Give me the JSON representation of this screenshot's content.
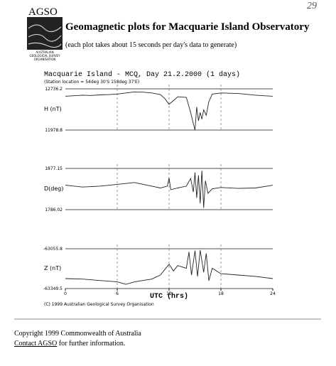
{
  "header": {
    "logo_text": "AGSO",
    "logo_caption": [
      "AUSTRALIAN",
      "GEOLOGICAL SURVEY",
      "ORGANISATION"
    ],
    "title": "Geomagnetic plots for Macquarie Island Observatory",
    "subtitle": "(each plot takes about 15 seconds per day's data to generate)",
    "page_number": "29"
  },
  "plot_title": "Macquarie Island - MCQ, Day 21.2.2000 (1 days)",
  "station": "(Station location = 54deg 30'S 158deg 37'E)",
  "chart_data": [
    {
      "type": "line",
      "y_label": "H (nT)",
      "color": "#222222",
      "xlim": [
        0,
        24
      ],
      "ylim": [
        11978.8,
        12736.2
      ],
      "yticks": [
        11978.8,
        12736.2
      ],
      "x": [
        0,
        1,
        2,
        3,
        4,
        5,
        6,
        7,
        8,
        9,
        10,
        11,
        11.5,
        12,
        12.5,
        13,
        14,
        14.5,
        14.8,
        15,
        15.2,
        15.4,
        15.6,
        15.8,
        16,
        16.3,
        16.6,
        17,
        18,
        20,
        22,
        24
      ],
      "values": [
        12600,
        12610,
        12620,
        12615,
        12625,
        12630,
        12640,
        12660,
        12680,
        12675,
        12660,
        12630,
        12560,
        12450,
        12520,
        12590,
        12580,
        12300,
        12100,
        11980,
        12400,
        12150,
        12300,
        12180,
        12350,
        12250,
        12500,
        12640,
        12660,
        12650,
        12620,
        12600
      ]
    },
    {
      "type": "line",
      "y_label": "D(deg)",
      "color": "#222222",
      "xlim": [
        0,
        24
      ],
      "ylim": [
        1786.02,
        1877.15
      ],
      "yticks": [
        1786.02,
        1877.15
      ],
      "x": [
        0,
        2,
        4,
        6,
        8,
        10,
        11,
        11.8,
        12,
        12.2,
        13,
        14,
        14.5,
        14.8,
        15,
        15.2,
        15.4,
        15.6,
        15.8,
        16,
        16.2,
        16.5,
        17,
        18,
        20,
        22,
        24
      ],
      "values": [
        1840,
        1836,
        1838,
        1842,
        1846,
        1838,
        1834,
        1838,
        1856,
        1830,
        1834,
        1838,
        1855,
        1825,
        1868,
        1812,
        1862,
        1800,
        1872,
        1790,
        1850,
        1822,
        1832,
        1835,
        1833,
        1834,
        1840
      ]
    },
    {
      "type": "line",
      "y_label": "Z (nT)",
      "x_label": "UTC (hrs)",
      "color": "#222222",
      "xlim": [
        0,
        24
      ],
      "xticks": [
        0,
        6,
        12,
        18,
        24
      ],
      "ylim": [
        -63349.5,
        -63055.8
      ],
      "yticks": [
        -63349.5,
        -63055.8
      ],
      "x": [
        0,
        2,
        4,
        6,
        7,
        8,
        10,
        11,
        12,
        12.5,
        13,
        14,
        14.3,
        14.6,
        15,
        15.3,
        15.6,
        16,
        16.3,
        16.6,
        17,
        18,
        20,
        22,
        24
      ],
      "values": [
        -63276,
        -63280,
        -63290,
        -63300,
        -63318,
        -63300,
        -63280,
        -63250,
        -63170,
        -63220,
        -63180,
        -63200,
        -63080,
        -63250,
        -63070,
        -63260,
        -63066,
        -63230,
        -63090,
        -63292,
        -63200,
        -63240,
        -63250,
        -63260,
        -63276
      ]
    }
  ],
  "credit": "(C) 1999 Australian Geological Survey Organisation",
  "footer": {
    "copyright": "Copyright 1999 Commonwealth of Australia",
    "link": "Contact AGSO",
    "rest": " for further information."
  }
}
